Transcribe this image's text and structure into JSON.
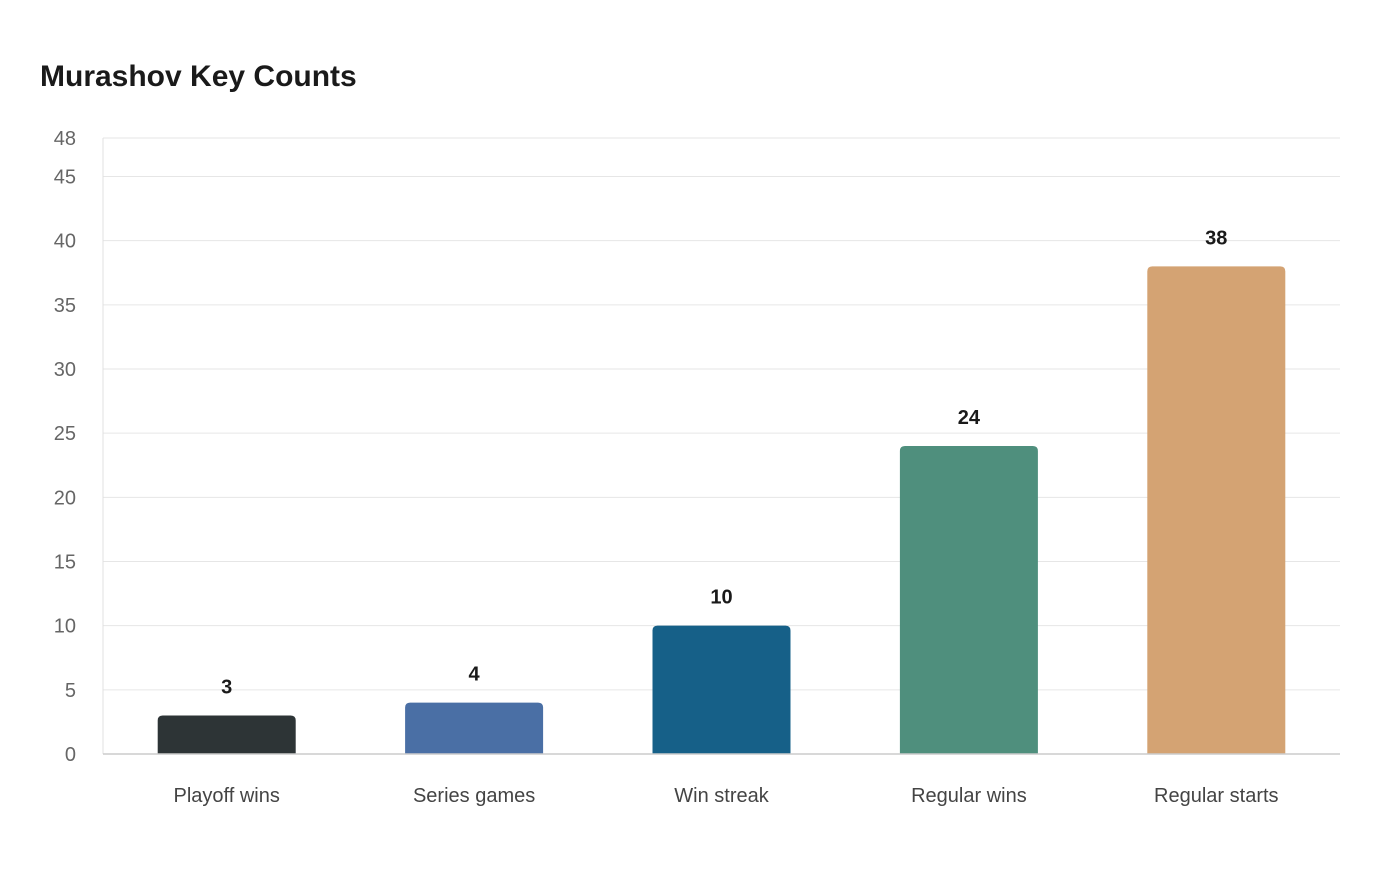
{
  "chart_data": {
    "type": "bar",
    "title": "Murashov Key Counts",
    "xlabel": "",
    "ylabel": "",
    "categories": [
      "Playoff wins",
      "Series games",
      "Win streak",
      "Regular wins",
      "Regular starts"
    ],
    "values": [
      3,
      4,
      10,
      24,
      38
    ],
    "colors": [
      "#2d3436",
      "#4a6fa5",
      "#166088",
      "#4f8f7d",
      "#d4a373"
    ],
    "ylim": [
      0,
      48
    ],
    "yticks": [
      0,
      5,
      10,
      15,
      20,
      25,
      30,
      35,
      40,
      45,
      48
    ],
    "grid": true,
    "data_labels": true,
    "legend": "none"
  }
}
